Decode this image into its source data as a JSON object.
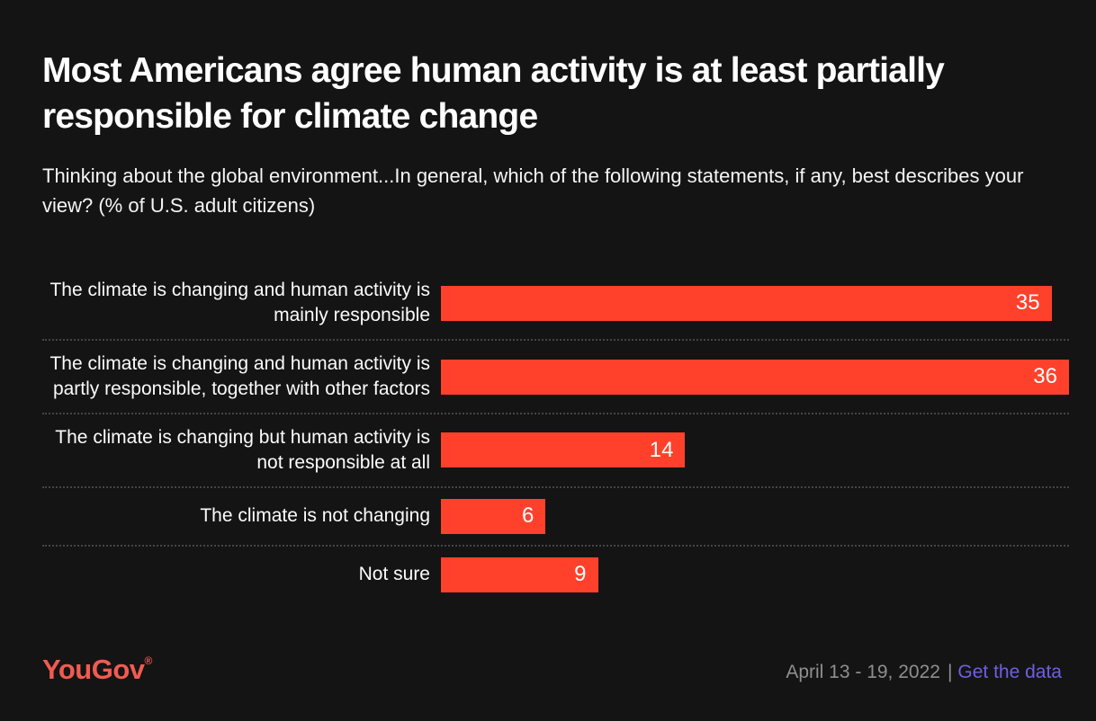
{
  "page": {
    "background": "#141414",
    "title": "Most Americans agree human activity is at least partially responsible for climate change",
    "subtitle": "Thinking about the global environment...In general, which of the following statements, if any, best describes your view? (% of U.S. adult citizens)"
  },
  "chart_data": {
    "type": "bar",
    "orientation": "horizontal",
    "title": "Most Americans agree human activity is at least partially responsible for climate change",
    "subtitle": "Thinking about the global environment...In general, which of the following statements, if any, best describes your view? (% of U.S. adult citizens)",
    "categories": [
      "The climate is changing and human activity is mainly responsible",
      "The climate is changing and human activity is partly responsible, together with other factors",
      "The climate is changing but human activity is not responsible at all",
      "The climate is not changing",
      "Not sure"
    ],
    "values": [
      35,
      36,
      14,
      6,
      9
    ],
    "xlim": [
      0,
      36
    ],
    "xlabel": "",
    "ylabel": "",
    "grid": false,
    "legend": "none",
    "value_labels_inside_bars": true,
    "bar_color": "#ff412c",
    "value_label_color": "#ffffff",
    "row_separator_style": "dotted"
  },
  "footer": {
    "logo_text": "YouGov",
    "registered_mark": "®",
    "date_range": "April 13 - 19, 2022",
    "separator": "|",
    "link_label": "Get the data"
  },
  "colors": {
    "background": "#141414",
    "bar": "#ff412c",
    "title_text": "#ffffff",
    "subtitle_text": "#f5f5f5",
    "category_text": "#fbfbfb",
    "separator_dots": "#454545",
    "logo": "#f05b51",
    "date_text": "#8f8f8f",
    "link": "#6e5fe4"
  }
}
